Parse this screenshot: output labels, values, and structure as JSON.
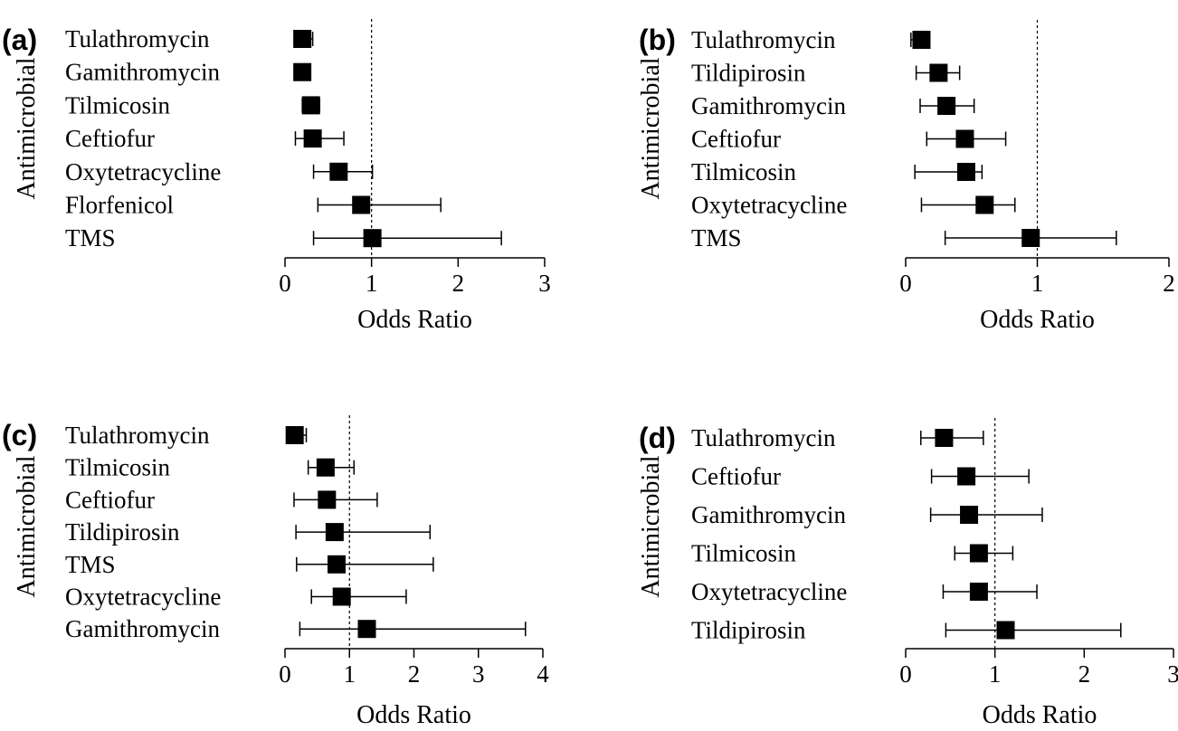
{
  "chart_data": [
    {
      "panel": "(a)",
      "type": "forest",
      "ylabel": "Antimicrobial",
      "xlabel": "Odds Ratio",
      "xlim": [
        0,
        3
      ],
      "xticks": [
        0,
        1,
        2,
        3
      ],
      "reference_line": 1,
      "rows": [
        {
          "name": "Tulathromycin",
          "or": 0.2,
          "lo": 0.12,
          "hi": 0.32
        },
        {
          "name": "Gamithromycin",
          "or": 0.2,
          "lo": 0.14,
          "hi": 0.28
        },
        {
          "name": "Tilmicosin",
          "or": 0.3,
          "lo": 0.2,
          "hi": 0.4
        },
        {
          "name": "Ceftiofur",
          "or": 0.32,
          "lo": 0.12,
          "hi": 0.68
        },
        {
          "name": "Oxytetracycline",
          "or": 0.62,
          "lo": 0.33,
          "hi": 1.01
        },
        {
          "name": "Florfenicol",
          "or": 0.88,
          "lo": 0.38,
          "hi": 1.8
        },
        {
          "name": "TMS",
          "or": 1.01,
          "lo": 0.33,
          "hi": 2.5
        }
      ]
    },
    {
      "panel": "(b)",
      "type": "forest",
      "ylabel": "Antimicrobial",
      "xlabel": "Odds Ratio",
      "xlim": [
        0,
        2
      ],
      "xticks": [
        0,
        1,
        2
      ],
      "reference_line": 1,
      "rows": [
        {
          "name": "Tulathromycin",
          "or": 0.12,
          "lo": 0.04,
          "hi": 0.16
        },
        {
          "name": "Tildipirosin",
          "or": 0.25,
          "lo": 0.08,
          "hi": 0.41
        },
        {
          "name": "Gamithromycin",
          "or": 0.31,
          "lo": 0.11,
          "hi": 0.52
        },
        {
          "name": "Ceftiofur",
          "or": 0.45,
          "lo": 0.16,
          "hi": 0.76
        },
        {
          "name": "Tilmicosin",
          "or": 0.46,
          "lo": 0.07,
          "hi": 0.58
        },
        {
          "name": "Oxytetracycline",
          "or": 0.6,
          "lo": 0.12,
          "hi": 0.83
        },
        {
          "name": "TMS",
          "or": 0.95,
          "lo": 0.3,
          "hi": 1.6
        }
      ]
    },
    {
      "panel": "(c)",
      "type": "forest",
      "ylabel": "Antimicrobial",
      "xlabel": "Odds Ratio",
      "xlim": [
        0,
        4
      ],
      "xticks": [
        0,
        1,
        2,
        3,
        4
      ],
      "reference_line": 1,
      "rows": [
        {
          "name": "Tulathromycin",
          "or": 0.15,
          "lo": 0.1,
          "hi": 0.33
        },
        {
          "name": "Tilmicosin",
          "or": 0.63,
          "lo": 0.36,
          "hi": 1.07
        },
        {
          "name": "Ceftiofur",
          "or": 0.65,
          "lo": 0.14,
          "hi": 1.43
        },
        {
          "name": "Tildipirosin",
          "or": 0.77,
          "lo": 0.17,
          "hi": 2.25
        },
        {
          "name": "TMS",
          "or": 0.8,
          "lo": 0.18,
          "hi": 2.3
        },
        {
          "name": "Oxytetracycline",
          "or": 0.88,
          "lo": 0.41,
          "hi": 1.88
        },
        {
          "name": "Gamithromycin",
          "or": 1.27,
          "lo": 0.23,
          "hi": 3.73
        }
      ]
    },
    {
      "panel": "(d)",
      "type": "forest",
      "ylabel": "Antimicrobial",
      "xlabel": "Odds Ratio",
      "xlim": [
        0,
        3
      ],
      "xticks": [
        0,
        1,
        2,
        3
      ],
      "reference_line": 1,
      "rows": [
        {
          "name": "Tulathromycin",
          "or": 0.43,
          "lo": 0.17,
          "hi": 0.87
        },
        {
          "name": "Ceftiofur",
          "or": 0.68,
          "lo": 0.29,
          "hi": 1.38
        },
        {
          "name": "Gamithromycin",
          "or": 0.71,
          "lo": 0.28,
          "hi": 1.53
        },
        {
          "name": "Tilmicosin",
          "or": 0.82,
          "lo": 0.55,
          "hi": 1.2
        },
        {
          "name": "Oxytetracycline",
          "or": 0.82,
          "lo": 0.42,
          "hi": 1.47
        },
        {
          "name": "Tildipirosin",
          "or": 1.12,
          "lo": 0.45,
          "hi": 2.41
        }
      ]
    }
  ]
}
